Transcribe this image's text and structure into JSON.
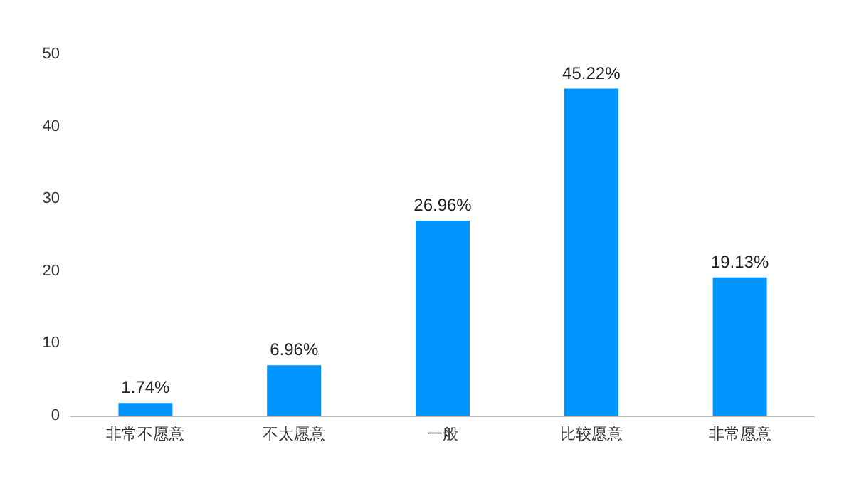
{
  "chart_data": {
    "type": "bar",
    "categories": [
      "非常不愿意",
      "不太愿意",
      "一般",
      "比较愿意",
      "非常愿意"
    ],
    "values": [
      1.74,
      6.96,
      26.96,
      45.22,
      19.13
    ],
    "value_labels": [
      "1.74%",
      "6.96%",
      "26.96%",
      "45.22%",
      "19.13%"
    ],
    "color": "#0095ff",
    "ylim": [
      0,
      50
    ],
    "yticks": [
      0,
      10,
      20,
      30,
      40,
      50
    ],
    "grid": false
  }
}
